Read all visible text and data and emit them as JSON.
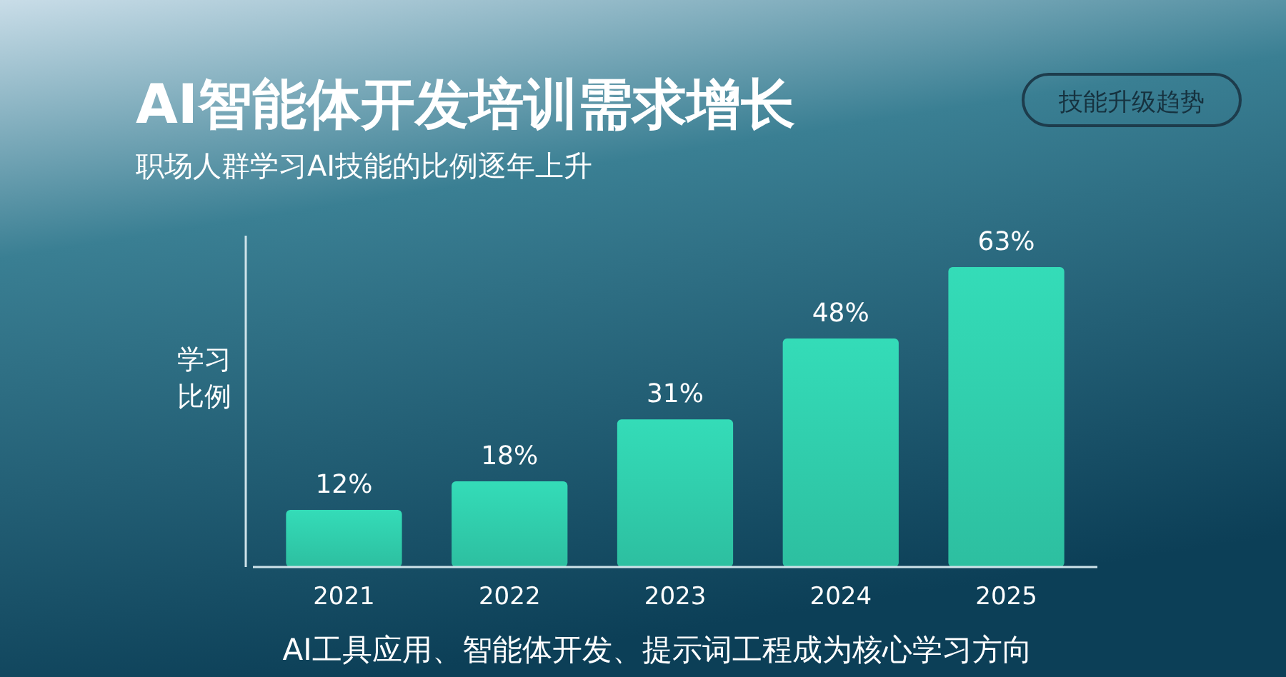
{
  "chart_data": {
    "type": "bar",
    "title": "AI智能体开发培训需求增长",
    "subtitle": "职场人群学习AI技能的比例逐年上升",
    "ylabel": "学习比例",
    "categories": [
      "2021",
      "2022",
      "2023",
      "2024",
      "2025"
    ],
    "values": [
      12,
      18,
      31,
      48,
      63
    ],
    "value_labels": [
      "12%",
      "18%",
      "31%",
      "48%",
      "63%"
    ],
    "color": "#34dcb8",
    "annotations": [
      "技能升级趋势",
      "AI工具应用、智能体开发、提示词工程成为核心学习方向"
    ]
  }
}
